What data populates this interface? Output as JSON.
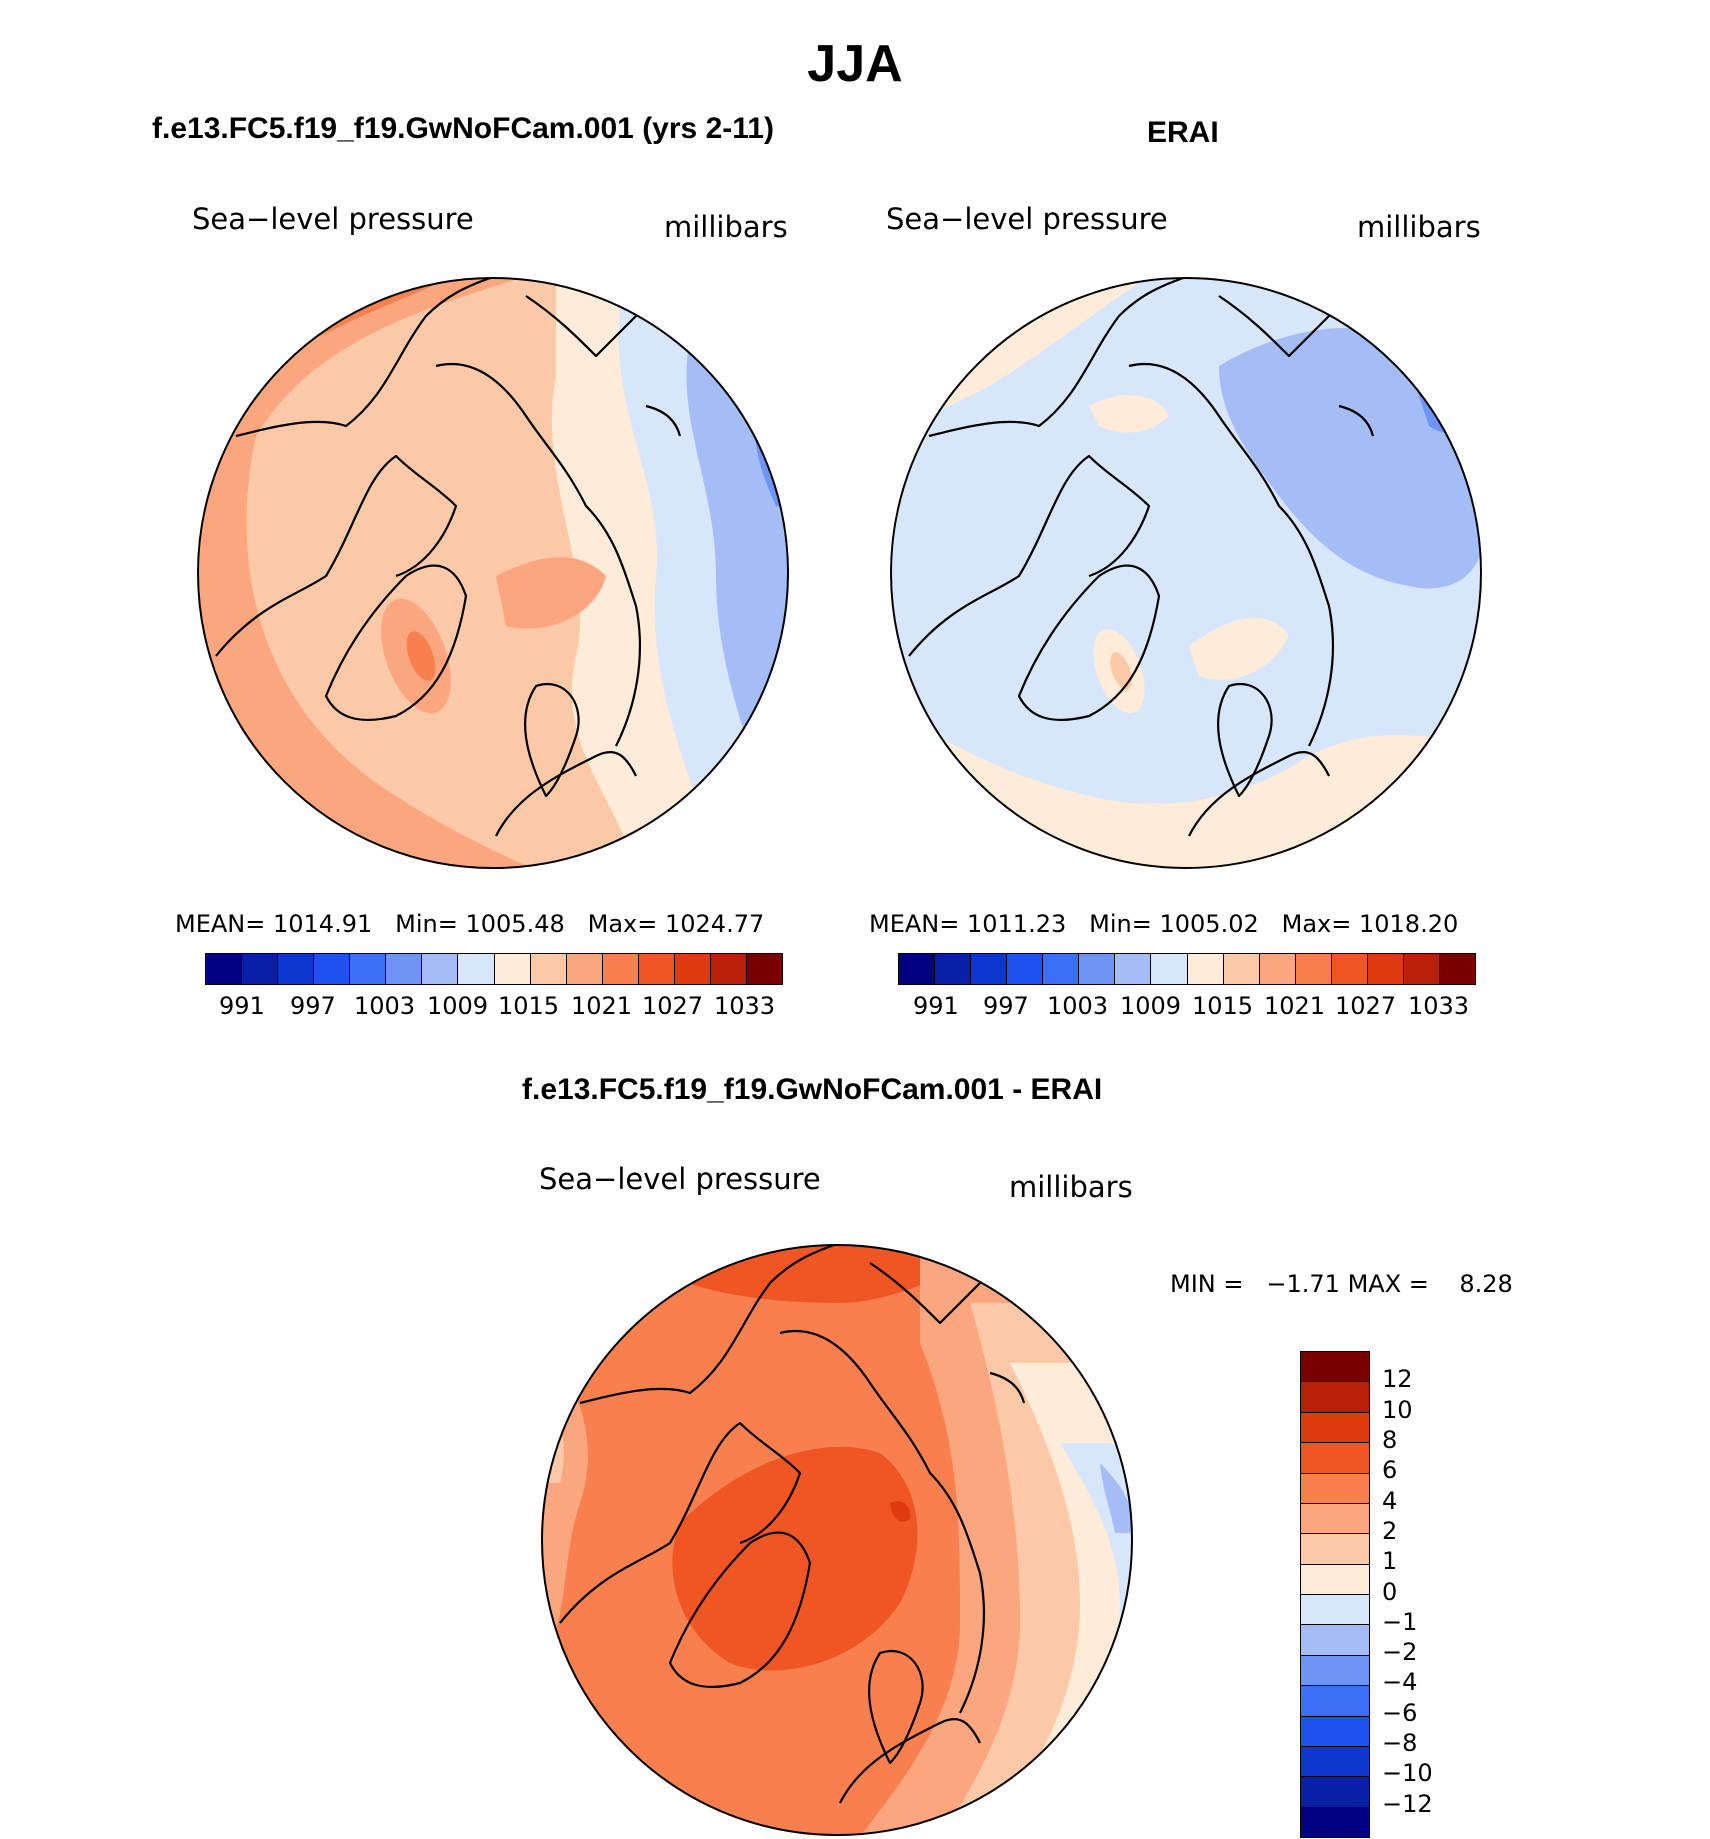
{
  "season": "JJA",
  "colors": {
    "palette": [
      "#000080",
      "#0a1fa8",
      "#0d36cf",
      "#1d52ef",
      "#3d6ff4",
      "#6e95f5",
      "#a5bdf7",
      "#d8e6fb",
      "#feebd8",
      "#fcc9a8",
      "#fba67f",
      "#f7804e",
      "#ef5623",
      "#dd3a10",
      "#b8200a",
      "#7a0000"
    ],
    "land": "#000000"
  },
  "panels": {
    "model": {
      "title": "f.e13.FC5.f19_f19.GwNoFCam.001 (yrs 2-11)",
      "variable": "Sea−level pressure",
      "units": "millibars",
      "mean_label": "MEAN=",
      "mean": "1014.91",
      "min_label": "Min=",
      "min": "1005.48",
      "max_label": "Max=",
      "max": "1024.77"
    },
    "obs": {
      "title": "ERAI",
      "variable": "Sea−level pressure",
      "units": "millibars",
      "mean_label": "MEAN=",
      "mean": "1011.23",
      "min_label": "Min=",
      "min": "1005.02",
      "max_label": "Max=",
      "max": "1018.20"
    },
    "diff": {
      "title": "f.e13.FC5.f19_f19.GwNoFCam.001 - ERAI",
      "variable": "Sea−level pressure",
      "units": "millibars",
      "min_label": "MIN =",
      "min": "−1.71",
      "max_label": "MAX =",
      "max": "8.28"
    }
  },
  "chart_data": [
    {
      "type": "heatmap",
      "title": "f.e13.FC5.f19_f19.GwNoFCam.001 (yrs 2-11)",
      "variable": "Sea-level pressure",
      "units": "millibars",
      "projection": "north polar stereographic",
      "statistics": {
        "mean": 1014.91,
        "min": 1005.48,
        "max": 1024.77
      },
      "colorbar_levels": [
        988,
        991,
        994,
        997,
        1000,
        1003,
        1006,
        1009,
        1012,
        1015,
        1018,
        1021,
        1024,
        1027,
        1030,
        1033
      ],
      "colorbar_tick_labels": [
        "991",
        "997",
        "1003",
        "1009",
        "1015",
        "1021",
        "1027",
        "1033"
      ]
    },
    {
      "type": "heatmap",
      "title": "ERAI",
      "variable": "Sea-level pressure",
      "units": "millibars",
      "projection": "north polar stereographic",
      "statistics": {
        "mean": 1011.23,
        "min": 1005.02,
        "max": 1018.2
      },
      "colorbar_levels": [
        988,
        991,
        994,
        997,
        1000,
        1003,
        1006,
        1009,
        1012,
        1015,
        1018,
        1021,
        1024,
        1027,
        1030,
        1033
      ],
      "colorbar_tick_labels": [
        "991",
        "997",
        "1003",
        "1009",
        "1015",
        "1021",
        "1027",
        "1033"
      ]
    },
    {
      "type": "heatmap",
      "title": "f.e13.FC5.f19_f19.GwNoFCam.001 - ERAI",
      "variable": "Sea-level pressure",
      "units": "millibars",
      "projection": "north polar stereographic",
      "statistics": {
        "min": -1.71,
        "max": 8.28
      },
      "colorbar_levels": [
        -12,
        -10,
        -8,
        -6,
        -4,
        -2,
        -1,
        0,
        1,
        2,
        4,
        6,
        8,
        10,
        12
      ],
      "colorbar_tick_labels": [
        "12",
        "10",
        "8",
        "6",
        "4",
        "2",
        "1",
        "0",
        "−1",
        "−2",
        "−4",
        "−6",
        "−8",
        "−10",
        "−12"
      ]
    }
  ]
}
